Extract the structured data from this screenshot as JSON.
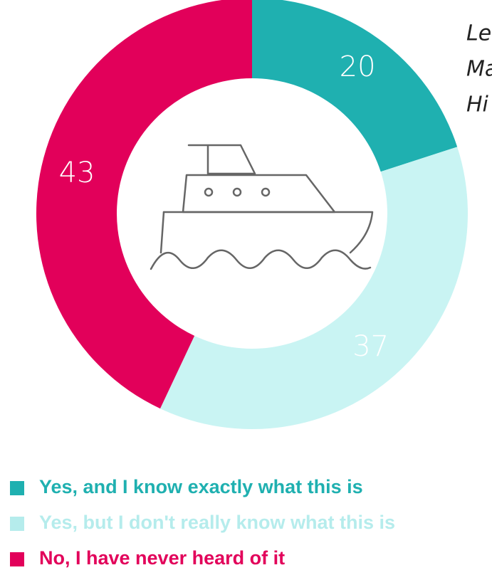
{
  "chart_data": {
    "type": "donut",
    "categories": [
      "Yes, and I know exactly what this is",
      "Yes, but I don't really know what this is",
      "No, I have never heard of it"
    ],
    "values": [
      20,
      37,
      43
    ],
    "colors": [
      "#1fb0b0",
      "#c9f4f3",
      "#e2005a"
    ],
    "legend_text_colors": [
      "#1fb0b0",
      "#b5ecec",
      "#e2005a"
    ],
    "notes": [
      "Le",
      "Ma",
      "Hi"
    ]
  }
}
